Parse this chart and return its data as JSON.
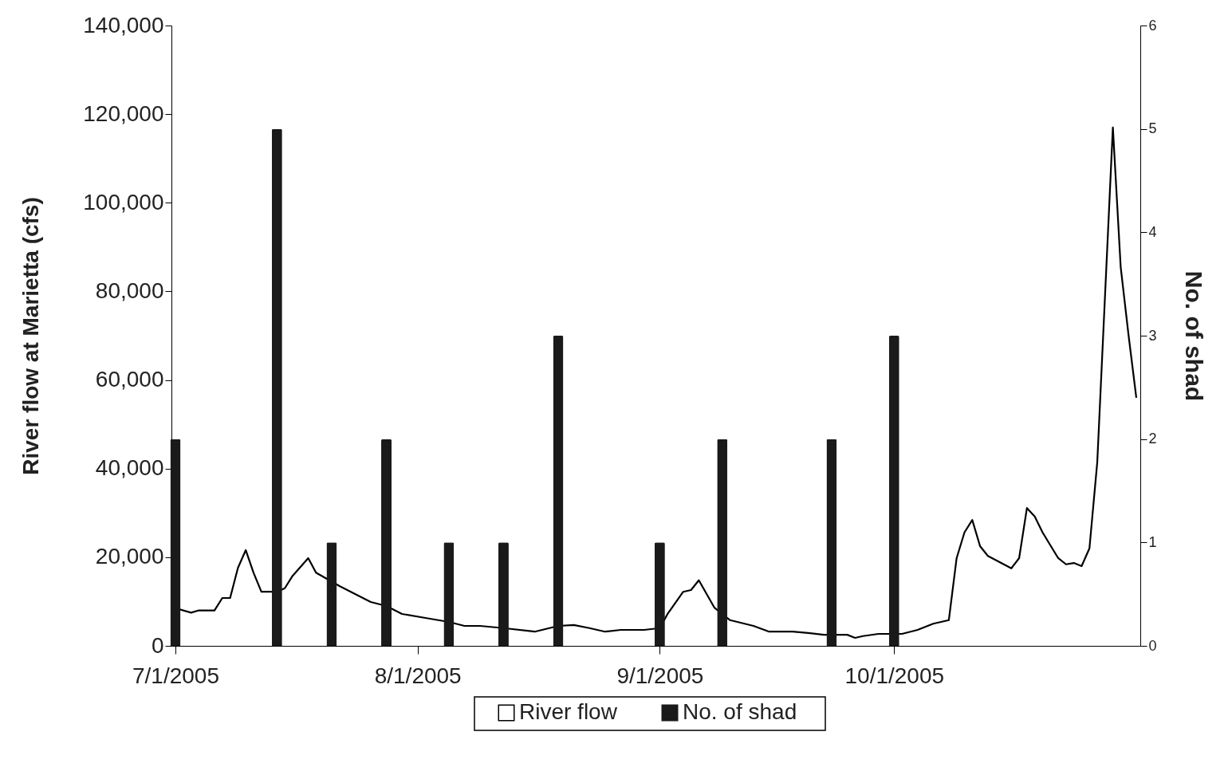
{
  "chart_data": {
    "type": "line",
    "ylabel": "River flow at Marietta (cfs)",
    "y2label": "No. of shad",
    "xlim": [
      "2005-07-01",
      "2005-11-01"
    ],
    "xticks": [
      {
        "value": "2005-07-01",
        "label": "7/1/2005"
      },
      {
        "value": "2005-08-01",
        "label": "8/1/2005"
      },
      {
        "value": "2005-09-01",
        "label": "9/1/2005"
      },
      {
        "value": "2005-10-01",
        "label": "10/1/2005"
      }
    ],
    "ylim": [
      0,
      140000
    ],
    "yticks": [
      0,
      {
        "value": 20000,
        "label": "20,000"
      },
      {
        "value": 40000,
        "label": "40,000"
      },
      {
        "value": 60000,
        "label": "60,000"
      },
      {
        "value": 80000,
        "label": "80,000"
      },
      {
        "value": 100000,
        "label": "100,000"
      },
      {
        "value": 120000,
        "label": "120,000"
      },
      {
        "value": 140000,
        "label": "140,000"
      }
    ],
    "y2lim": [
      0,
      6
    ],
    "y2ticks": [
      0,
      1,
      2,
      3,
      4,
      5,
      6
    ],
    "grid": false,
    "legend": "bottom",
    "series": [
      {
        "name": "River flow",
        "color": "#000000",
        "x": [
          "2005-07-01",
          "2005-07-03",
          "2005-07-04",
          "2005-07-06",
          "2005-07-07",
          "2005-07-08",
          "2005-07-09",
          "2005-07-10",
          "2005-07-11",
          "2005-07-12",
          "2005-07-14",
          "2005-07-15",
          "2005-07-16",
          "2005-07-18",
          "2005-07-19",
          "2005-07-22",
          "2005-07-24",
          "2005-07-26",
          "2005-07-28",
          "2005-07-30",
          "2005-08-02",
          "2005-08-05",
          "2005-08-07",
          "2005-08-09",
          "2005-08-12",
          "2005-08-16",
          "2005-08-19",
          "2005-08-21",
          "2005-08-23",
          "2005-08-25",
          "2005-08-27",
          "2005-08-30",
          "2005-09-01",
          "2005-09-02",
          "2005-09-04",
          "2005-09-05",
          "2005-09-06",
          "2005-09-07",
          "2005-09-08",
          "2005-09-10",
          "2005-09-13",
          "2005-09-15",
          "2005-09-18",
          "2005-09-20",
          "2005-09-22",
          "2005-09-25",
          "2005-09-26",
          "2005-09-27",
          "2005-09-29",
          "2005-10-02",
          "2005-10-04",
          "2005-10-06",
          "2005-10-08",
          "2005-10-09",
          "2005-10-10",
          "2005-10-11",
          "2005-10-12",
          "2005-10-13",
          "2005-10-16",
          "2005-10-17",
          "2005-10-18",
          "2005-10-19",
          "2005-10-20",
          "2005-10-22",
          "2005-10-23",
          "2005-10-24",
          "2005-10-25",
          "2005-10-26",
          "2005-10-27",
          "2005-10-29",
          "2005-10-30",
          "2005-10-31",
          "2005-11-01"
        ],
        "values": [
          8500,
          7500,
          8000,
          8000,
          10800,
          10800,
          17600,
          21600,
          16500,
          12200,
          12200,
          13000,
          15800,
          19800,
          16500,
          13500,
          11700,
          9900,
          9000,
          7200,
          6300,
          5400,
          4500,
          4500,
          4000,
          3200,
          4500,
          4700,
          4000,
          3200,
          3600,
          3600,
          4000,
          7200,
          12200,
          12600,
          14800,
          11700,
          8600,
          5800,
          4500,
          3200,
          3200,
          2900,
          2500,
          2500,
          1800,
          2200,
          2700,
          2700,
          3600,
          5000,
          5800,
          19800,
          25600,
          28400,
          22500,
          20300,
          17500,
          19800,
          31100,
          29200,
          25600,
          19800,
          18400,
          18700,
          18000,
          22000,
          41400,
          117000,
          85500,
          70200,
          56000
        ]
      },
      {
        "name": "No. of shad",
        "type": "bar",
        "axis": "y2",
        "color": "#1a1a1a",
        "x": [
          "2005-07-01",
          "2005-07-14",
          "2005-07-21",
          "2005-07-28",
          "2005-08-05",
          "2005-08-12",
          "2005-08-19",
          "2005-09-01",
          "2005-09-09",
          "2005-09-23",
          "2005-10-01"
        ],
        "values": [
          2,
          5,
          1,
          2,
          1,
          1,
          3,
          1,
          2,
          2,
          3
        ]
      }
    ]
  }
}
